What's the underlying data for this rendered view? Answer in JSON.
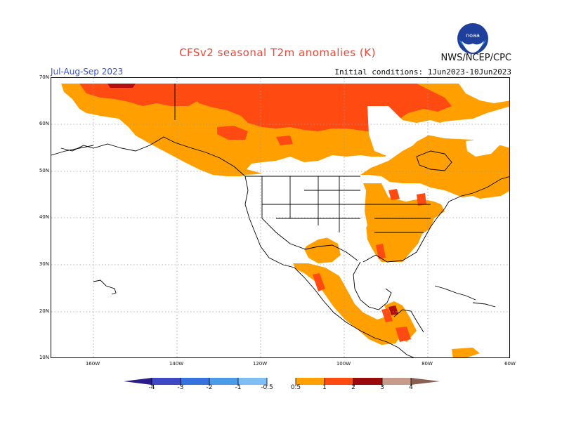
{
  "title": "CFSv2 seasonal T2m anomalies (K)",
  "agency": "NWS/NCEP/CPC",
  "season": "Jul-Aug-Sep 2023",
  "initial_conditions": "Initial conditions: 1Jun2023-10Jun2023",
  "lat_labels": [
    "70N",
    "60N",
    "50N",
    "40N",
    "30N",
    "20N",
    "10N"
  ],
  "lon_labels": [
    "160W",
    "140W",
    "120W",
    "100W",
    "80W",
    "60W"
  ],
  "colorbar": {
    "ticks": [
      "-4",
      "-3",
      "-2",
      "-1",
      "-0.5",
      "0.5",
      "1",
      "2",
      "3",
      "4"
    ],
    "colors": [
      "#2b1c8e",
      "#3f49c6",
      "#3572dd",
      "#4a9ae8",
      "#7fbdf5",
      "#ffffff",
      "#ff9f00",
      "#ff4a12",
      "#d41d0f",
      "#9a0a0a",
      "#c79b8c",
      "#8b5e52"
    ]
  },
  "colors": {
    "land_white": "#ffffff",
    "anom_0_5_1": "#ff9f00",
    "anom_1_2": "#ff4a12",
    "anom_2_3": "#b20e0e",
    "title_red": "#e8473a",
    "season_blue": "#3a55d6"
  },
  "noaa_logo_icon": "noaa-logo-icon"
}
